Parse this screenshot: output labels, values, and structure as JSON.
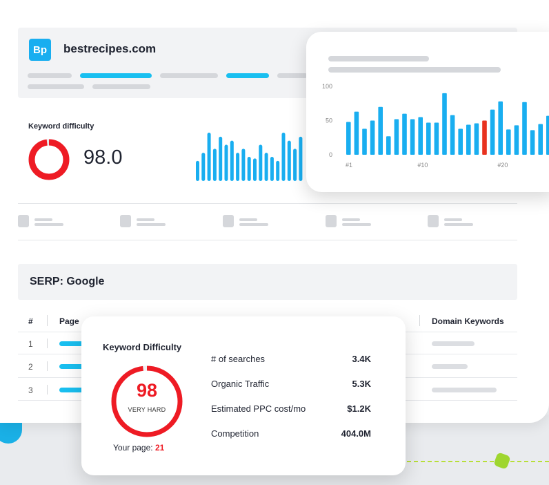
{
  "site": {
    "logo_text": "Bp",
    "name": "bestrecipes.com"
  },
  "keyword_difficulty": {
    "label": "Keyword difficulty",
    "value": "98.0",
    "ring_fill": 0.98
  },
  "mini_chart": {
    "values": [
      25,
      35,
      60,
      40,
      55,
      45,
      50,
      35,
      40,
      30,
      28,
      45,
      35,
      30,
      25,
      60,
      50,
      40,
      55
    ]
  },
  "bar_chart": {
    "y_ticks": [
      "100",
      "50",
      "0"
    ],
    "x_ticks": [
      "#1",
      "#10",
      "#20"
    ],
    "highlight_index": 17,
    "values": [
      48,
      63,
      38,
      50,
      70,
      27,
      52,
      60,
      52,
      55,
      47,
      47,
      90,
      58,
      38,
      44,
      46,
      50,
      66,
      78,
      37,
      43,
      77,
      36,
      45,
      57,
      60
    ]
  },
  "serp": {
    "title": "SERP: Google",
    "columns": {
      "num": "#",
      "page": "Page",
      "domain_keywords": "Domain Keywords"
    },
    "rows": [
      "1",
      "2",
      "3"
    ]
  },
  "kd_card": {
    "title": "Keyword Difficulty",
    "score": "98",
    "rating": "VERY HARD",
    "ring_fill": 0.98,
    "your_page_label": "Your page:",
    "your_page_value": "21",
    "stats": [
      {
        "label": "# of searches",
        "value": "3.4K"
      },
      {
        "label": "Organic Traffic",
        "value": "5.3K"
      },
      {
        "label": "Estimated PPC cost/mo",
        "value": "$1.2K"
      },
      {
        "label": "Competition",
        "value": "404.0M"
      }
    ]
  },
  "colors": {
    "accent": "#19aef0",
    "danger": "#ee1b24",
    "highlight_bar": "#e8321f"
  }
}
